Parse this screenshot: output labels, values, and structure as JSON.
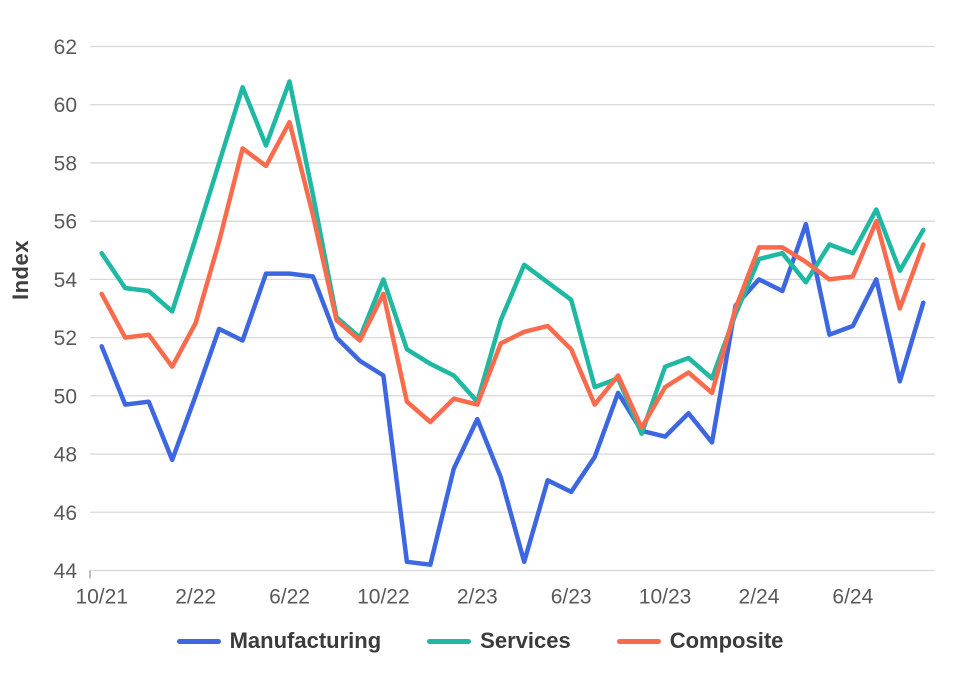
{
  "chart_data": {
    "type": "line",
    "title": "",
    "ylabel": "Index",
    "xlabel": "",
    "ylim": [
      44,
      62
    ],
    "ytick_step": 2,
    "grid": true,
    "legend_position": "bottom",
    "x_tick_labels": [
      "10/21",
      "2/22",
      "6/22",
      "10/22",
      "2/23",
      "6/23",
      "10/23",
      "2/24",
      "6/24"
    ],
    "x_tick_every": 4,
    "categories": [
      "10/21",
      "11/21",
      "12/21",
      "1/22",
      "2/22",
      "3/22",
      "4/22",
      "5/22",
      "6/22",
      "7/22",
      "8/22",
      "9/22",
      "10/22",
      "11/22",
      "12/22",
      "1/23",
      "2/23",
      "3/23",
      "4/23",
      "5/23",
      "6/23",
      "7/23",
      "8/23",
      "9/23",
      "10/23",
      "11/23",
      "12/23",
      "1/24",
      "2/24",
      "3/24",
      "4/24",
      "5/24",
      "6/24",
      "7/24",
      "8/24",
      "9/24"
    ],
    "series": [
      {
        "name": "Manufacturing",
        "color": "#3d67e0",
        "values": [
          51.7,
          49.7,
          49.8,
          47.8,
          50.0,
          52.3,
          51.9,
          54.2,
          54.2,
          54.1,
          52.0,
          51.2,
          50.7,
          44.3,
          44.2,
          47.5,
          49.2,
          47.2,
          44.3,
          47.1,
          46.7,
          47.9,
          50.1,
          48.8,
          48.6,
          49.4,
          48.4,
          53.1,
          54.0,
          53.6,
          55.9,
          52.1,
          52.4,
          54.0,
          50.5,
          53.2
        ]
      },
      {
        "name": "Services",
        "color": "#1fb8a3",
        "values": [
          54.9,
          53.7,
          53.6,
          52.9,
          55.4,
          58.0,
          60.6,
          58.6,
          60.8,
          56.9,
          52.7,
          52.0,
          54.0,
          51.6,
          51.1,
          50.7,
          49.8,
          52.6,
          54.5,
          53.9,
          53.3,
          50.3,
          50.6,
          48.7,
          51.0,
          51.3,
          50.6,
          52.8,
          54.7,
          54.9,
          53.9,
          55.2,
          54.9,
          56.4,
          54.3,
          55.7
        ]
      },
      {
        "name": "Composite",
        "color": "#f96b4c",
        "values": [
          53.5,
          52.0,
          52.1,
          51.0,
          52.5,
          55.3,
          58.5,
          57.9,
          59.4,
          56.2,
          52.6,
          51.9,
          53.5,
          49.8,
          49.1,
          49.9,
          49.7,
          51.8,
          52.2,
          52.4,
          51.6,
          49.7,
          50.7,
          48.9,
          50.3,
          50.8,
          50.1,
          53.0,
          55.1,
          55.1,
          54.6,
          54.0,
          54.1,
          56.0,
          53.0,
          55.2
        ]
      }
    ]
  },
  "styles": {
    "grid_color": "#d9d9d9",
    "tick_label_color": "#595959",
    "axis_tick_color": "#9b9b9b",
    "line_width": 4.5
  }
}
